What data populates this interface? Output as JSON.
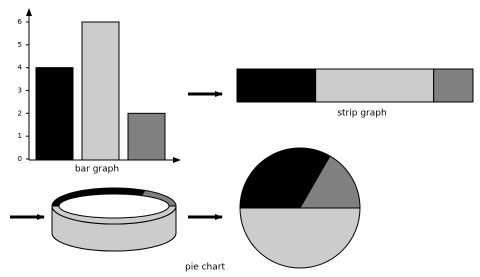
{
  "bar_graph": {
    "label": "bar graph",
    "values": [
      4,
      6,
      2
    ],
    "colors": [
      "#000000",
      "#cccccc",
      "#808080"
    ],
    "ylim": [
      0,
      6
    ],
    "yticks": [
      0,
      1,
      2,
      3,
      4,
      5,
      6
    ]
  },
  "strip_graph": {
    "label": "strip graph"
  },
  "pie_chart": {
    "label": "pie chart"
  }
}
